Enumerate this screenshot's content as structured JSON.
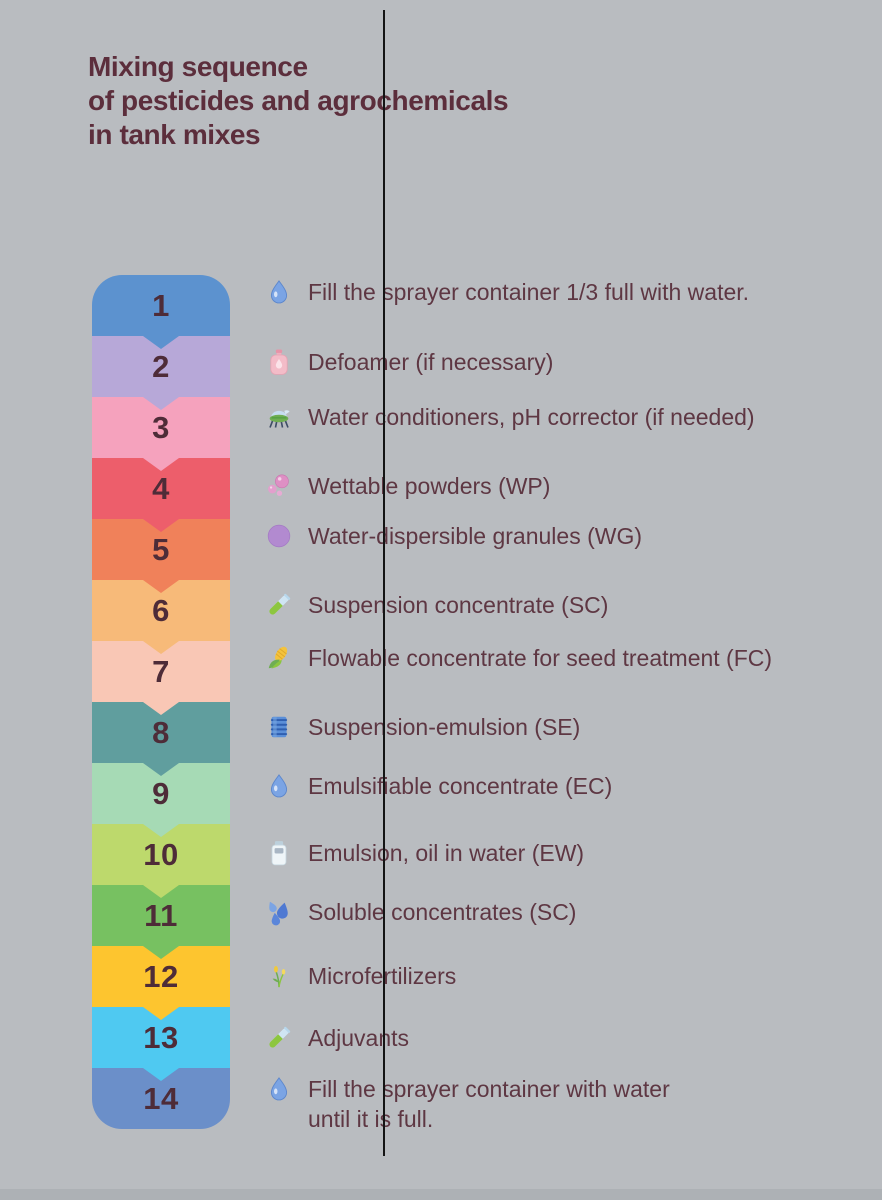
{
  "page": {
    "background_color": "#b9bcc0",
    "divider_color": "#141414",
    "footer_bar_color": "#adb1b5"
  },
  "title": {
    "lines": [
      "Mixing sequence",
      "of pesticides and agrochemicals",
      "in tank mixes"
    ],
    "color": "#5c2e3c"
  },
  "sequence": {
    "number_color": "#4e2c38",
    "text_color": "#5e3743"
  },
  "steps": [
    {
      "num": "1",
      "band_color": "#5c92cf",
      "icon": "water-drop",
      "label": "Fill the sprayer container 1/3 full with water."
    },
    {
      "num": "2",
      "band_color": "#b7a8d8",
      "icon": "defoamer-bottle",
      "label": "Defoamer (if necessary)"
    },
    {
      "num": "3",
      "band_color": "#f5a2bd",
      "icon": "sprayer-machine",
      "label": "Water conditioners, pH corrector (if needed)"
    },
    {
      "num": "4",
      "band_color": "#ed5e6b",
      "icon": "powder-bubbles",
      "label": "Wettable powders (WP)"
    },
    {
      "num": "5",
      "band_color": "#f0815a",
      "icon": "granule-circle",
      "label": "Water-dispersible granules (WG)"
    },
    {
      "num": "6",
      "band_color": "#f7ba79",
      "icon": "test-tube",
      "label": "Suspension concentrate (SC)"
    },
    {
      "num": "7",
      "band_color": "#f9c7b5",
      "icon": "corn",
      "label": " Flowable concentrate for seed treatment (FC)"
    },
    {
      "num": "8",
      "band_color": "#609e9e",
      "icon": "barrel",
      "label": "Suspension-emulsion (SE)"
    },
    {
      "num": "9",
      "band_color": "#a6dab5",
      "icon": "water-drop",
      "label": "Emulsifiable concentrate (EC)"
    },
    {
      "num": "10",
      "band_color": "#bdd96c",
      "icon": "bottle",
      "label": "Emulsion, oil in water (EW)"
    },
    {
      "num": "11",
      "band_color": "#77c161",
      "icon": "droplets",
      "label": "Soluble concentrates (SC)"
    },
    {
      "num": "12",
      "band_color": "#fdc52f",
      "icon": "seedling",
      "label": "Microfertilizers"
    },
    {
      "num": "13",
      "band_color": "#4fc9f1",
      "icon": "test-tube",
      "label": "Adjuvants"
    },
    {
      "num": "14",
      "band_color": "#6b8fc9",
      "icon": "water-drop",
      "label": "Fill the sprayer container with water\nuntil it is full."
    }
  ]
}
